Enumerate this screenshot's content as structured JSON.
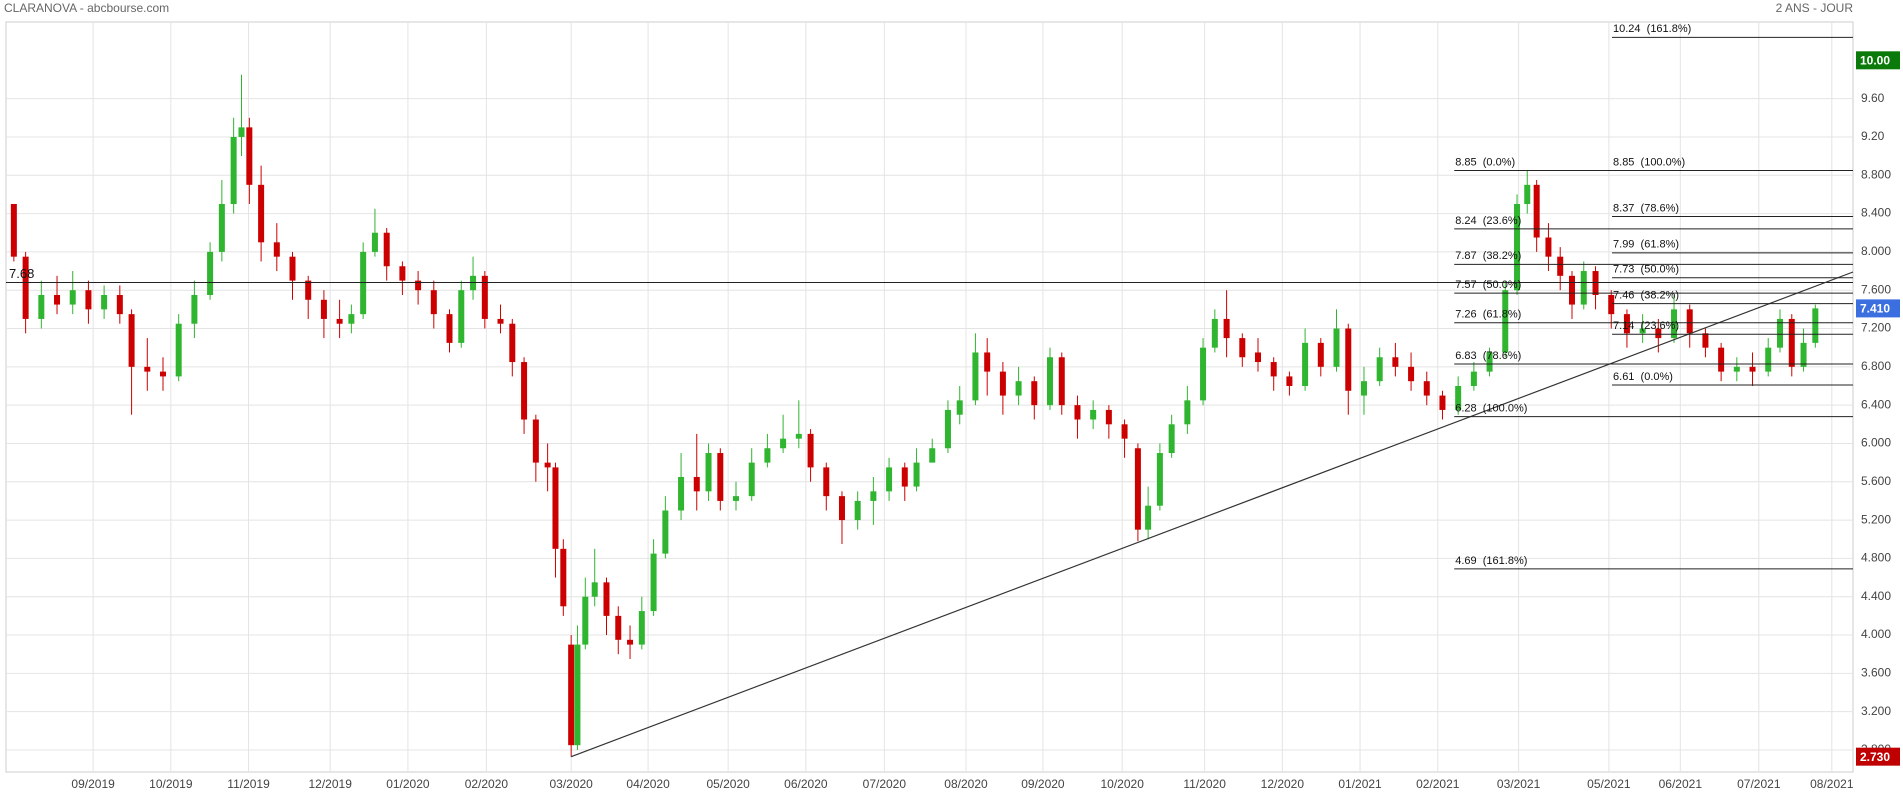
{
  "chart_data": {
    "type": "candlestick",
    "title": "CLARANOVA - abcbourse.com",
    "subtitle": "2 ANS - JOUR",
    "xlim": [
      0,
      23.53
    ],
    "ylim": [
      2.57,
      10.4
    ],
    "xticks": [
      {
        "value": 1.11,
        "label": "09/2019"
      },
      {
        "value": 2.1,
        "label": "10/2019"
      },
      {
        "value": 3.09,
        "label": "11/2019"
      },
      {
        "value": 4.13,
        "label": "12/2019"
      },
      {
        "value": 5.12,
        "label": "01/2020"
      },
      {
        "value": 6.12,
        "label": "02/2020"
      },
      {
        "value": 7.2,
        "label": "03/2020"
      },
      {
        "value": 8.18,
        "label": "04/2020"
      },
      {
        "value": 9.2,
        "label": "05/2020"
      },
      {
        "value": 10.19,
        "label": "06/2020"
      },
      {
        "value": 11.19,
        "label": "07/2020"
      },
      {
        "value": 12.23,
        "label": "08/2020"
      },
      {
        "value": 13.21,
        "label": "09/2020"
      },
      {
        "value": 14.22,
        "label": "10/2020"
      },
      {
        "value": 15.27,
        "label": "11/2020"
      },
      {
        "value": 16.26,
        "label": "12/2020"
      },
      {
        "value": 17.25,
        "label": "01/2021"
      },
      {
        "value": 18.24,
        "label": "02/2021"
      },
      {
        "value": 19.27,
        "label": "03/2021"
      },
      {
        "value": 20.42,
        "label": "05/2021"
      },
      {
        "value": 21.33,
        "label": "06/2021"
      },
      {
        "value": 22.33,
        "label": "07/2021"
      },
      {
        "value": 23.26,
        "label": "08/2021"
      }
    ],
    "yticks": [
      {
        "value": 2.8,
        "label": "2.800"
      },
      {
        "value": 3.2,
        "label": "3.200"
      },
      {
        "value": 3.6,
        "label": "3.600"
      },
      {
        "value": 4,
        "label": "4.000"
      },
      {
        "value": 4.4,
        "label": "4.400"
      },
      {
        "value": 4.8,
        "label": "4.800"
      },
      {
        "value": 5.2,
        "label": "5.200"
      },
      {
        "value": 5.6,
        "label": "5.600"
      },
      {
        "value": 6,
        "label": "6.000"
      },
      {
        "value": 6.4,
        "label": "6.400"
      },
      {
        "value": 6.8,
        "label": "6.800"
      },
      {
        "value": 7.2,
        "label": "7.200"
      },
      {
        "value": 7.6,
        "label": "7.600"
      },
      {
        "value": 8,
        "label": "8.000"
      },
      {
        "value": 8.4,
        "label": "8.400"
      },
      {
        "value": 8.8,
        "label": "8.800"
      },
      {
        "value": 9.2,
        "label": "9.20"
      },
      {
        "value": 9.6,
        "label": "9.60"
      }
    ],
    "grid": true,
    "up_color": "#2fb52f",
    "down_color": "#cc0000",
    "x": [
      0.1,
      0.25,
      0.45,
      0.65,
      0.85,
      1.05,
      1.25,
      1.45,
      1.6,
      1.8,
      2.0,
      2.2,
      2.4,
      2.6,
      2.75,
      2.9,
      3.0,
      3.1,
      3.25,
      3.45,
      3.65,
      3.85,
      4.05,
      4.25,
      4.4,
      4.55,
      4.7,
      4.85,
      5.05,
      5.25,
      5.45,
      5.65,
      5.8,
      5.95,
      6.1,
      6.3,
      6.45,
      6.6,
      6.75,
      6.9,
      7.0,
      7.1,
      7.2,
      7.28,
      7.38,
      7.5,
      7.65,
      7.8,
      7.95,
      8.1,
      8.25,
      8.4,
      8.6,
      8.8,
      8.95,
      9.1,
      9.3,
      9.5,
      9.7,
      9.9,
      10.1,
      10.25,
      10.45,
      10.65,
      10.85,
      11.05,
      11.25,
      11.45,
      11.6,
      11.8,
      12.0,
      12.15,
      12.35,
      12.5,
      12.7,
      12.9,
      13.1,
      13.3,
      13.45,
      13.65,
      13.85,
      14.05,
      14.25,
      14.42,
      14.55,
      14.7,
      14.85,
      15.05,
      15.25,
      15.4,
      15.55,
      15.75,
      15.95,
      16.15,
      16.35,
      16.55,
      16.75,
      16.95,
      17.1,
      17.3,
      17.5,
      17.7,
      17.9,
      18.1,
      18.3,
      18.5,
      18.7,
      18.9,
      19.1,
      19.25,
      19.38,
      19.5,
      19.65,
      19.8,
      19.95,
      20.1,
      20.25,
      20.45,
      20.65,
      20.85,
      21.05,
      21.25,
      21.45,
      21.65,
      21.85,
      22.05,
      22.25,
      22.45,
      22.6,
      22.75,
      22.9,
      23.05
    ],
    "open": [
      8.5,
      7.95,
      7.3,
      7.55,
      7.45,
      7.6,
      7.4,
      7.55,
      7.35,
      6.8,
      6.75,
      6.7,
      7.25,
      7.55,
      8.0,
      8.5,
      9.2,
      9.3,
      8.7,
      8.1,
      7.95,
      7.7,
      7.5,
      7.3,
      7.25,
      7.35,
      8.0,
      8.2,
      7.85,
      7.7,
      7.6,
      7.35,
      7.05,
      7.6,
      7.75,
      7.3,
      7.25,
      6.85,
      6.25,
      5.8,
      5.75,
      4.9,
      3.9,
      2.85,
      3.9,
      4.4,
      4.55,
      4.2,
      3.95,
      3.9,
      4.25,
      4.85,
      5.3,
      5.65,
      5.5,
      5.9,
      5.4,
      5.45,
      5.8,
      5.95,
      6.05,
      6.1,
      5.75,
      5.45,
      5.2,
      5.4,
      5.5,
      5.75,
      5.55,
      5.8,
      5.95,
      6.3,
      6.45,
      6.95,
      6.75,
      6.5,
      6.65,
      6.4,
      6.9,
      6.4,
      6.25,
      6.35,
      6.2,
      5.95,
      5.1,
      5.35,
      5.9,
      6.2,
      6.45,
      7.0,
      7.3,
      7.1,
      6.95,
      6.85,
      6.7,
      6.6,
      7.05,
      6.8,
      7.2,
      6.5,
      6.65,
      6.9,
      6.8,
      6.65,
      6.5,
      6.35,
      6.6,
      6.75,
      6.95,
      7.6,
      8.5,
      8.7,
      8.15,
      7.95,
      7.75,
      7.45,
      7.8,
      7.55,
      7.35,
      7.15,
      7.2,
      7.1,
      7.4,
      7.15,
      7.0,
      6.75,
      6.8,
      6.75,
      7.0,
      7.3,
      6.8,
      7.05
    ],
    "high": [
      8.5,
      8.0,
      7.7,
      7.75,
      7.8,
      7.7,
      7.65,
      7.65,
      7.4,
      7.1,
      6.9,
      7.35,
      7.7,
      8.1,
      8.75,
      9.4,
      9.85,
      9.4,
      8.9,
      8.3,
      8.0,
      7.75,
      7.6,
      7.5,
      7.45,
      8.1,
      8.45,
      8.25,
      7.9,
      7.8,
      7.7,
      7.4,
      7.7,
      7.95,
      7.8,
      7.45,
      7.3,
      6.9,
      6.3,
      6.0,
      5.8,
      5.0,
      4.0,
      4.1,
      4.6,
      4.9,
      4.6,
      4.3,
      4.1,
      4.4,
      5.0,
      5.45,
      5.9,
      6.1,
      6.0,
      5.95,
      5.6,
      5.95,
      6.1,
      6.3,
      6.45,
      6.15,
      5.8,
      5.5,
      5.5,
      5.65,
      5.85,
      5.8,
      5.95,
      6.05,
      6.45,
      6.6,
      7.15,
      7.1,
      6.85,
      6.8,
      6.7,
      7.0,
      6.95,
      6.5,
      6.45,
      6.4,
      6.25,
      6.0,
      5.55,
      6.0,
      6.3,
      6.6,
      7.1,
      7.4,
      7.6,
      7.15,
      7.1,
      6.9,
      6.75,
      7.2,
      7.1,
      7.4,
      7.25,
      6.8,
      7.0,
      7.05,
      6.95,
      6.75,
      6.55,
      6.7,
      6.85,
      7.0,
      7.7,
      8.6,
      8.85,
      8.75,
      8.3,
      8.05,
      7.8,
      7.9,
      7.85,
      7.6,
      7.4,
      7.35,
      7.3,
      7.55,
      7.45,
      7.2,
      7.05,
      6.9,
      6.95,
      7.1,
      7.4,
      7.35,
      7.2,
      7.45
    ],
    "low": [
      7.9,
      7.15,
      7.2,
      7.35,
      7.35,
      7.25,
      7.3,
      7.25,
      6.3,
      6.55,
      6.55,
      6.65,
      7.1,
      7.5,
      7.9,
      8.4,
      9.0,
      8.5,
      7.9,
      7.8,
      7.5,
      7.3,
      7.1,
      7.1,
      7.15,
      7.3,
      7.95,
      7.7,
      7.55,
      7.45,
      7.2,
      6.95,
      7.0,
      7.5,
      7.2,
      7.15,
      6.7,
      6.1,
      5.6,
      5.5,
      4.6,
      4.2,
      2.73,
      2.8,
      3.85,
      4.3,
      4.0,
      3.8,
      3.75,
      3.85,
      4.2,
      4.8,
      5.2,
      5.3,
      5.4,
      5.3,
      5.3,
      5.4,
      5.75,
      5.9,
      5.95,
      5.6,
      5.3,
      4.95,
      5.1,
      5.15,
      5.4,
      5.4,
      5.5,
      5.85,
      5.9,
      6.2,
      6.4,
      6.5,
      6.3,
      6.4,
      6.25,
      6.35,
      6.3,
      6.05,
      6.15,
      6.05,
      5.85,
      4.98,
      5.0,
      5.3,
      5.85,
      6.1,
      6.4,
      6.95,
      6.9,
      6.8,
      6.75,
      6.55,
      6.5,
      6.55,
      6.7,
      6.75,
      6.3,
      6.3,
      6.6,
      6.7,
      6.55,
      6.4,
      6.25,
      6.3,
      6.55,
      6.7,
      6.9,
      7.55,
      8.4,
      8.0,
      7.8,
      7.6,
      7.3,
      7.4,
      7.4,
      7.2,
      7.0,
      7.05,
      6.95,
      7.05,
      7.0,
      6.9,
      6.65,
      6.65,
      6.6,
      6.7,
      6.95,
      6.7,
      6.75,
      7.0
    ],
    "close": [
      7.95,
      7.3,
      7.55,
      7.45,
      7.6,
      7.4,
      7.55,
      7.35,
      6.8,
      6.75,
      6.7,
      7.25,
      7.55,
      8.0,
      8.5,
      9.2,
      9.3,
      8.7,
      8.1,
      7.95,
      7.7,
      7.5,
      7.3,
      7.25,
      7.35,
      8.0,
      8.2,
      7.85,
      7.7,
      7.6,
      7.35,
      7.05,
      7.6,
      7.75,
      7.3,
      7.25,
      6.85,
      6.25,
      5.8,
      5.75,
      4.9,
      4.3,
      2.85,
      3.9,
      4.4,
      4.55,
      4.2,
      3.95,
      3.9,
      4.25,
      4.85,
      5.3,
      5.65,
      5.5,
      5.9,
      5.4,
      5.45,
      5.8,
      5.95,
      6.05,
      6.1,
      5.75,
      5.45,
      5.2,
      5.4,
      5.5,
      5.75,
      5.55,
      5.8,
      5.95,
      6.35,
      6.45,
      6.95,
      6.75,
      6.5,
      6.65,
      6.4,
      6.9,
      6.4,
      6.25,
      6.35,
      6.2,
      6.05,
      5.1,
      5.35,
      5.9,
      6.2,
      6.45,
      7.0,
      7.3,
      7.1,
      6.9,
      6.85,
      6.7,
      6.6,
      7.05,
      6.8,
      7.2,
      6.55,
      6.65,
      6.9,
      6.8,
      6.65,
      6.5,
      6.35,
      6.6,
      6.75,
      6.95,
      7.6,
      8.5,
      8.7,
      8.15,
      7.95,
      7.75,
      7.45,
      7.8,
      7.55,
      7.35,
      7.15,
      7.2,
      7.1,
      7.4,
      7.15,
      7.0,
      6.75,
      6.8,
      6.75,
      7.0,
      7.3,
      6.8,
      7.05,
      7.41
    ],
    "levels": [
      {
        "value": 7.68,
        "label": "7.68"
      }
    ],
    "trendline": {
      "x": [
        7.2,
        23.53
      ],
      "y": [
        2.73,
        7.79
      ]
    },
    "fib_sets": [
      {
        "x_start": 18.45,
        "levels": [
          {
            "value": 8.85,
            "label": "8.85  (0.0%)"
          },
          {
            "value": 8.24,
            "label": "8.24  (23.6%)"
          },
          {
            "value": 7.87,
            "label": "7.87  (38.2%)"
          },
          {
            "value": 7.57,
            "label": "7.57  (50.0%)"
          },
          {
            "value": 7.26,
            "label": "7.26  (61.8%)"
          },
          {
            "value": 6.83,
            "label": "6.83  (78.6%)"
          },
          {
            "value": 6.28,
            "label": "6.28  (100.0%)"
          },
          {
            "value": 4.69,
            "label": "4.69  (161.8%)"
          }
        ]
      },
      {
        "x_start": 20.46,
        "levels": [
          {
            "value": 10.24,
            "label": "10.24  (161.8%)"
          },
          {
            "value": 8.85,
            "label": "8.85  (100.0%)"
          },
          {
            "value": 8.37,
            "label": "8.37  (78.6%)"
          },
          {
            "value": 7.99,
            "label": "7.99  (61.8%)"
          },
          {
            "value": 7.73,
            "label": "7.73  (50.0%)"
          },
          {
            "value": 7.46,
            "label": "7.46  (38.2%)"
          },
          {
            "value": 7.14,
            "label": "7.14  (23.6%)"
          },
          {
            "value": 6.61,
            "label": "6.61  (0.0%)"
          }
        ]
      }
    ],
    "badges": [
      {
        "value": 10,
        "label": "10.00",
        "color": "#0a7a0a"
      },
      {
        "value": 7.41,
        "label": "7.410",
        "color": "#3b6fe0"
      },
      {
        "value": 2.73,
        "label": "2.730",
        "color": "#c00000"
      }
    ]
  }
}
